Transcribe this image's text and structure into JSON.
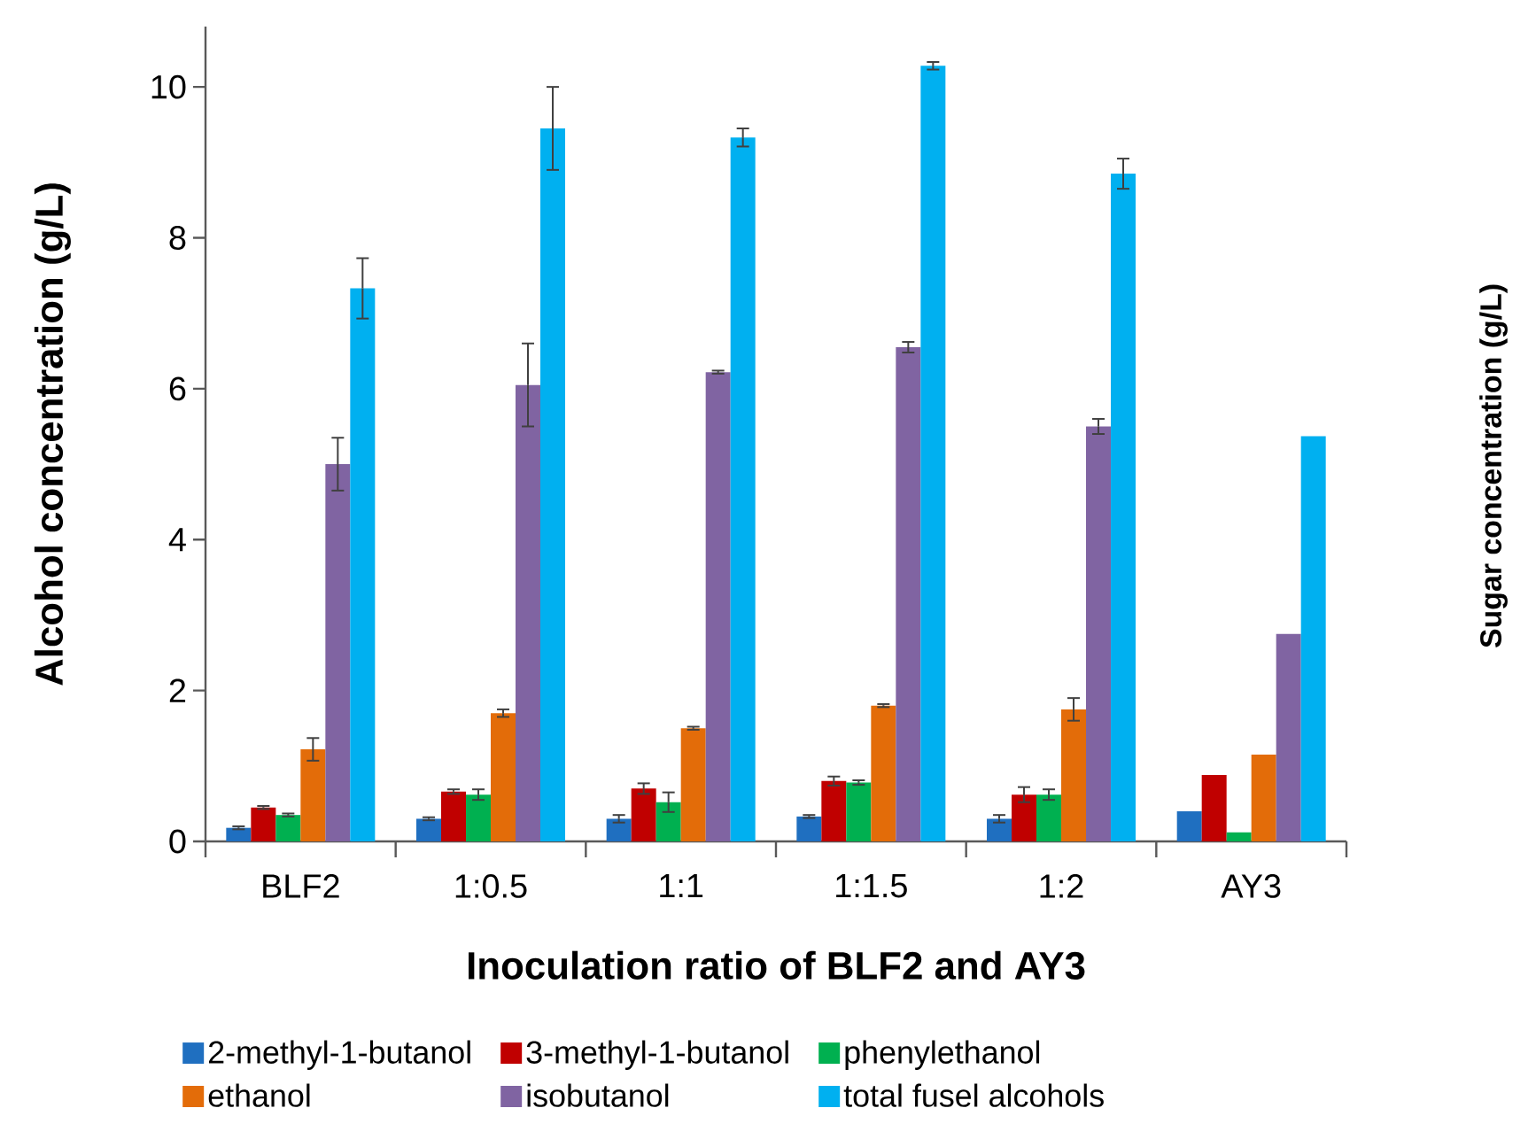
{
  "chart_data": {
    "type": "bar",
    "xlabel": "Inoculation ratio of BLF2 and AY3",
    "ylabel": "Alcohol concentration (g/L)",
    "categories": [
      "BLF2",
      "1:0.5",
      "1:1",
      "1:1.5",
      "1:2",
      "AY3"
    ],
    "series": [
      {
        "name": "2-methyl-1-butanol",
        "color": "#1f6fc0",
        "values": [
          0.18,
          0.3,
          0.3,
          0.33,
          0.3,
          0.4
        ],
        "errors": [
          0.02,
          0.02,
          0.05,
          0.02,
          0.05,
          null
        ]
      },
      {
        "name": "3-methyl-1-butanol",
        "color": "#c00000",
        "values": [
          0.45,
          0.66,
          0.7,
          0.8,
          0.62,
          0.88
        ],
        "errors": [
          0.02,
          0.03,
          0.07,
          0.06,
          0.1,
          null
        ]
      },
      {
        "name": "phenylethanol",
        "color": "#00b050",
        "values": [
          0.35,
          0.62,
          0.52,
          0.78,
          0.62,
          0.12
        ],
        "errors": [
          0.02,
          0.07,
          0.13,
          0.03,
          0.07,
          null
        ]
      },
      {
        "name": "ethanol",
        "color": "#e36c09",
        "values": [
          1.22,
          1.7,
          1.5,
          1.8,
          1.75,
          1.15
        ],
        "errors": [
          0.15,
          0.05,
          0.02,
          0.02,
          0.15,
          null
        ]
      },
      {
        "name": "isobutanol",
        "color": "#8064a2",
        "values": [
          5.0,
          6.05,
          6.22,
          6.55,
          5.5,
          2.75
        ],
        "errors": [
          0.35,
          0.55,
          0.02,
          0.07,
          0.1,
          null
        ]
      },
      {
        "name": "total fusel alcohols",
        "color": "#00b0f0",
        "values": [
          7.33,
          9.45,
          9.33,
          10.28,
          8.85,
          5.37
        ],
        "errors": [
          0.4,
          0.55,
          0.12,
          0.05,
          0.2,
          null
        ]
      }
    ],
    "ylim": [
      0,
      10.8
    ],
    "yticks": [
      0,
      2,
      4,
      6,
      8,
      10
    ],
    "legend": "bottom",
    "annotations": [
      "Sugar concentration (g/L)"
    ]
  }
}
